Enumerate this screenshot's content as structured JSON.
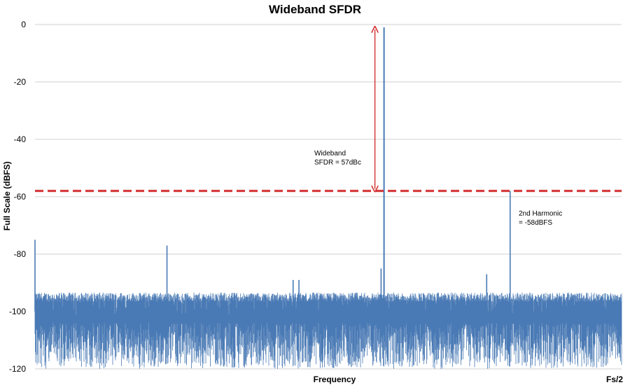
{
  "colors": {
    "spectrum": "#4a7ab5",
    "reference_line": "#d32f2f",
    "arrow": "#d32f2f",
    "grid": "#d0d0d0"
  },
  "chart_data": {
    "type": "line",
    "title": "Wideband SFDR",
    "xlabel": "Frequency",
    "ylabel": "Full Scale (dBFS)",
    "x_end_label": "Fs/2",
    "ylim": [
      -120,
      0
    ],
    "yticks": [
      0,
      -20,
      -40,
      -60,
      -80,
      -100,
      -120
    ],
    "grid": "horizontal",
    "noise_floor": {
      "band_top": -95,
      "band_bottom": -120
    },
    "peaks": [
      {
        "name": "fundamental",
        "x": 0.595,
        "y": -1
      },
      {
        "name": "2nd harmonic",
        "x": 0.81,
        "y": -58
      },
      {
        "x": 0.0,
        "y": -75
      },
      {
        "x": 0.225,
        "y": -77
      },
      {
        "x": 0.77,
        "y": -87
      },
      {
        "x": 0.44,
        "y": -89
      },
      {
        "x": 0.45,
        "y": -89
      },
      {
        "x": 0.59,
        "y": -85
      }
    ],
    "reference_line": {
      "y": -58
    },
    "annotations": {
      "sfdr": [
        "Wideband",
        "SFDR = 57dBc"
      ],
      "harmonic": [
        "2nd Harmonic",
        "= -58dBFS"
      ]
    }
  }
}
